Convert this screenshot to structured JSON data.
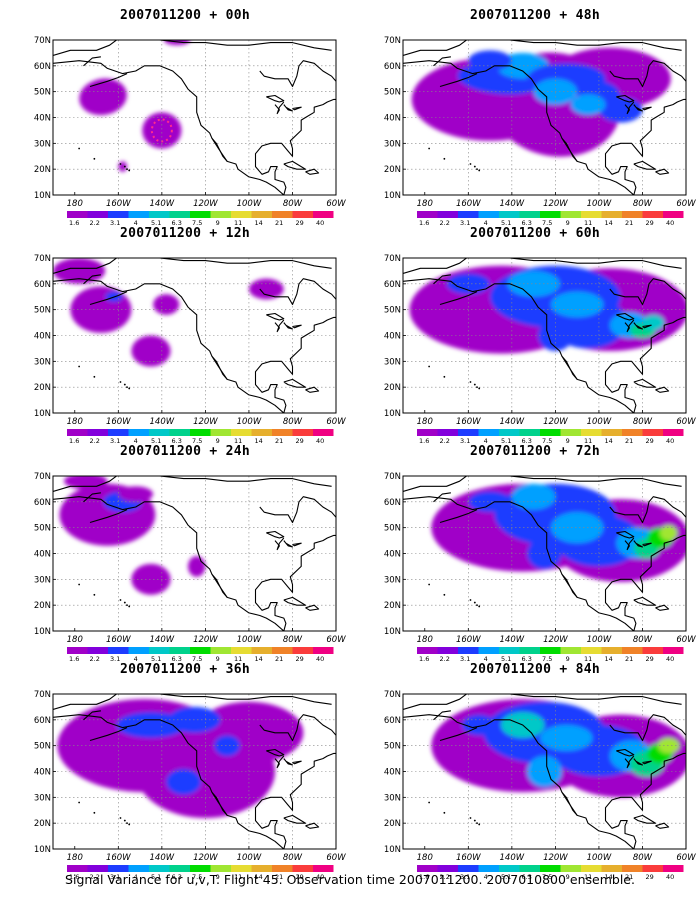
{
  "panels": [
    {
      "title": "2007011200 + 00h"
    },
    {
      "title": "2007011200 + 48h"
    },
    {
      "title": "2007011200 + 12h"
    },
    {
      "title": "2007011200 + 60h"
    },
    {
      "title": "2007011200 + 24h"
    },
    {
      "title": "2007011200 + 72h"
    },
    {
      "title": "2007011200 + 36h"
    },
    {
      "title": "2007011200 + 84h"
    }
  ],
  "lat_labels": [
    "70N",
    "60N",
    "50N",
    "40N",
    "30N",
    "20N",
    "10N"
  ],
  "lon_labels": [
    "180",
    "160W",
    "140W",
    "120W",
    "100W",
    "80W",
    "60W"
  ],
  "colorbar": {
    "labels": [
      "1.6",
      "2.2",
      "3.1",
      "4",
      "5.1",
      "6.3",
      "7.5",
      "9",
      "11",
      "14",
      "21",
      "29",
      "40"
    ],
    "colors": [
      "#a000c8",
      "#8200dc",
      "#1e3cff",
      "#00a0ff",
      "#00c8c8",
      "#00d28c",
      "#00dc00",
      "#a0e632",
      "#e6dc32",
      "#e6af2d",
      "#f08228",
      "#fa3c3c",
      "#f00082"
    ]
  },
  "caption": "Signal Variance for u,v,T. Flight 45. Observation time 2007011200. 2007010800 ensemble."
}
